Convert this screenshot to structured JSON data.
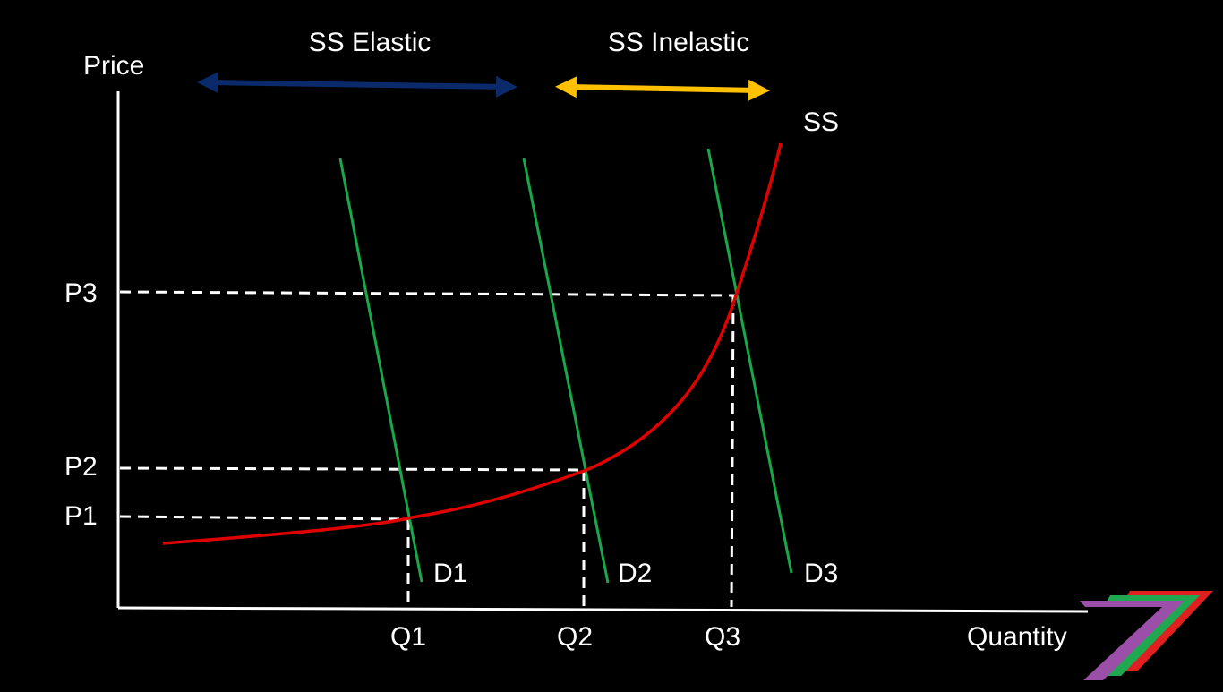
{
  "labels": {
    "price_axis": "Price",
    "quantity_axis": "Quantity",
    "elastic": "SS Elastic",
    "inelastic": "SS Inelastic",
    "supply": "SS",
    "p1": "P1",
    "p2": "P2",
    "p3": "P3",
    "q1": "Q1",
    "q2": "Q2",
    "q3": "Q3",
    "d1": "D1",
    "d2": "D2",
    "d3": "D3"
  },
  "colors": {
    "background": "#000000",
    "axis": "#ffffff",
    "supply_curve": "#e00000",
    "demand_curves": "#18a84a",
    "elastic_arrow": "#0b2a6b",
    "inelastic_arrow": "#ffc000",
    "guide_lines": "#ffffff",
    "logo_purple": "#9b4fa8",
    "logo_green": "#1fa84f",
    "logo_red": "#e02020"
  },
  "logo": {
    "name": "seven-logo-icon"
  }
}
